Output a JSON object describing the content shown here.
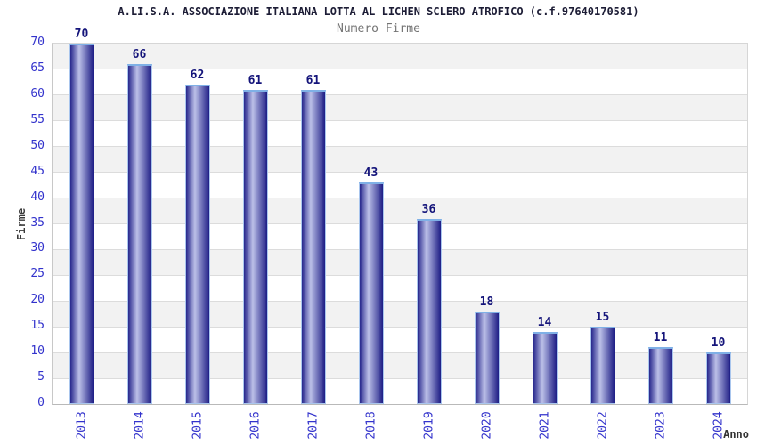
{
  "chart_data": {
    "type": "bar",
    "title": "A.LI.S.A. ASSOCIAZIONE ITALIANA LOTTA AL LICHEN SCLERO ATROFICO (c.f.97640170581)",
    "subtitle": "Numero Firme",
    "xlabel": "Anno",
    "ylabel": "Firme",
    "categories": [
      "2013",
      "2014",
      "2015",
      "2016",
      "2017",
      "2018",
      "2019",
      "2020",
      "2021",
      "2022",
      "2023",
      "2024"
    ],
    "values": [
      70,
      66,
      62,
      61,
      61,
      43,
      36,
      18,
      14,
      15,
      11,
      10
    ],
    "ylim": [
      0,
      70
    ],
    "ytick_step": 5,
    "grid": true,
    "legend_position": "none",
    "bar_labels_shown": true
  },
  "colors": {
    "bar_edge": "#26268c",
    "bar_peak": "#bcc0e8",
    "bar_end": "#1d1d85",
    "bar_border": "#a9c6ee",
    "bar_cap": "#7fb0e6",
    "tick_label": "#3333cc",
    "value_label": "#14147a",
    "band_gray": "#f2f2f2",
    "band_white": "#ffffff",
    "grid_line": "#dcdcdc",
    "title_color": "#1c1c35",
    "subtitle_color": "#737373",
    "axis_title_color": "#3a3a3a"
  }
}
